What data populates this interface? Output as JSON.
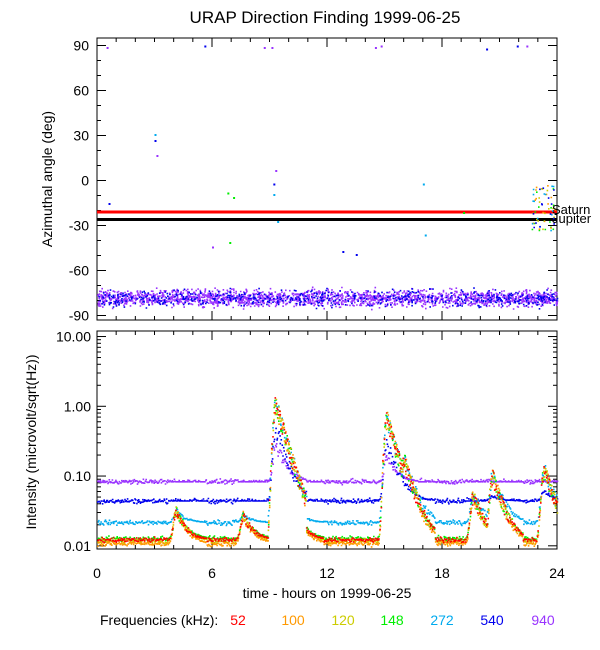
{
  "title": "URAP Direction Finding  1999-06-25",
  "chart_data": [
    {
      "type": "scatter",
      "panel": "top",
      "ylabel": "Azimuthal angle (deg)",
      "xlim": [
        0,
        24
      ],
      "ylim": [
        -93,
        95
      ],
      "yticks": [
        90,
        60,
        30,
        0,
        -30,
        -60,
        -90
      ],
      "grid": false,
      "reference_lines": [
        {
          "label": "Saturn",
          "y": -21,
          "color": "#ff0000"
        },
        {
          "label": "Jupiter",
          "y": -26,
          "color": "#000000"
        }
      ],
      "band": {
        "frequencies": [
          "940",
          "540"
        ],
        "y_center": -78,
        "y_spread": 8
      },
      "outliers": [
        {
          "x": 0.5,
          "y": 89,
          "freq": "940"
        },
        {
          "x": 5.6,
          "y": 90,
          "freq": "540"
        },
        {
          "x": 8.7,
          "y": 89,
          "freq": "940"
        },
        {
          "x": 9.1,
          "y": 89,
          "freq": "940"
        },
        {
          "x": 14.5,
          "y": 89,
          "freq": "940"
        },
        {
          "x": 14.8,
          "y": 90,
          "freq": "940"
        },
        {
          "x": 20.3,
          "y": 88,
          "freq": "540"
        },
        {
          "x": 21.9,
          "y": 90,
          "freq": "540"
        },
        {
          "x": 22.4,
          "y": 90,
          "freq": "940"
        },
        {
          "x": 3.0,
          "y": 31,
          "freq": "272"
        },
        {
          "x": 3.0,
          "y": 27,
          "freq": "540"
        },
        {
          "x": 3.1,
          "y": 17,
          "freq": "940"
        },
        {
          "x": 9.3,
          "y": 7,
          "freq": "940"
        },
        {
          "x": 9.2,
          "y": -2,
          "freq": "540"
        },
        {
          "x": 6.8,
          "y": -8,
          "freq": "148"
        },
        {
          "x": 7.1,
          "y": -11,
          "freq": "148"
        },
        {
          "x": 9.2,
          "y": -9,
          "freq": "272"
        },
        {
          "x": 9.4,
          "y": -27,
          "freq": "272"
        },
        {
          "x": 0.6,
          "y": -15,
          "freq": "540"
        },
        {
          "x": 6.0,
          "y": -44,
          "freq": "940"
        },
        {
          "x": 6.9,
          "y": -41,
          "freq": "148"
        },
        {
          "x": 12.8,
          "y": -47,
          "freq": "540"
        },
        {
          "x": 13.5,
          "y": -49,
          "freq": "540"
        },
        {
          "x": 17.0,
          "y": -2,
          "freq": "272"
        },
        {
          "x": 17.1,
          "y": -36,
          "freq": "272"
        },
        {
          "x": 19.1,
          "y": -21,
          "freq": "148"
        }
      ],
      "cluster_24h": {
        "x_range": [
          22.6,
          23.9
        ],
        "y_range": [
          -33,
          -3
        ]
      }
    },
    {
      "type": "line",
      "panel": "bottom",
      "ylabel": "Intensity (microvolt/sqrt(Hz))",
      "xlabel": "time - hours on 1999-06-25",
      "xlim": [
        0,
        24
      ],
      "xticks": [
        0,
        6,
        12,
        18,
        24
      ],
      "ylim": [
        0.009,
        12
      ],
      "yscale": "log",
      "yticks": [
        "0.01",
        "0.10",
        "1.00",
        "10.00"
      ],
      "grid": false,
      "legend": {
        "label": "Frequencies (kHz):",
        "placement": "bottom"
      },
      "series": [
        {
          "name": "52",
          "color": "#ff0000",
          "baseline": 0.0125
        },
        {
          "name": "100",
          "color": "#ff9900",
          "baseline": 0.011
        },
        {
          "name": "120",
          "color": "#cccc00",
          "baseline": 0.012
        },
        {
          "name": "148",
          "color": "#00ee00",
          "baseline": 0.013
        },
        {
          "name": "272",
          "color": "#00aaee",
          "baseline": 0.022
        },
        {
          "name": "540",
          "color": "#0000ee",
          "baseline": 0.045
        },
        {
          "name": "940",
          "color": "#9933ff",
          "baseline": 0.085
        }
      ],
      "events": [
        {
          "x": 4.1,
          "peak": 0.035
        },
        {
          "x": 7.6,
          "peak": 0.03
        },
        {
          "x": 9.3,
          "peak": 1.3
        },
        {
          "x": 10.2,
          "peak": 0.04
        },
        {
          "x": 15.1,
          "peak": 0.8
        },
        {
          "x": 16.0,
          "peak": 0.2
        },
        {
          "x": 19.6,
          "peak": 0.06
        },
        {
          "x": 20.6,
          "peak": 0.12
        },
        {
          "x": 23.3,
          "peak": 0.15
        }
      ]
    }
  ]
}
